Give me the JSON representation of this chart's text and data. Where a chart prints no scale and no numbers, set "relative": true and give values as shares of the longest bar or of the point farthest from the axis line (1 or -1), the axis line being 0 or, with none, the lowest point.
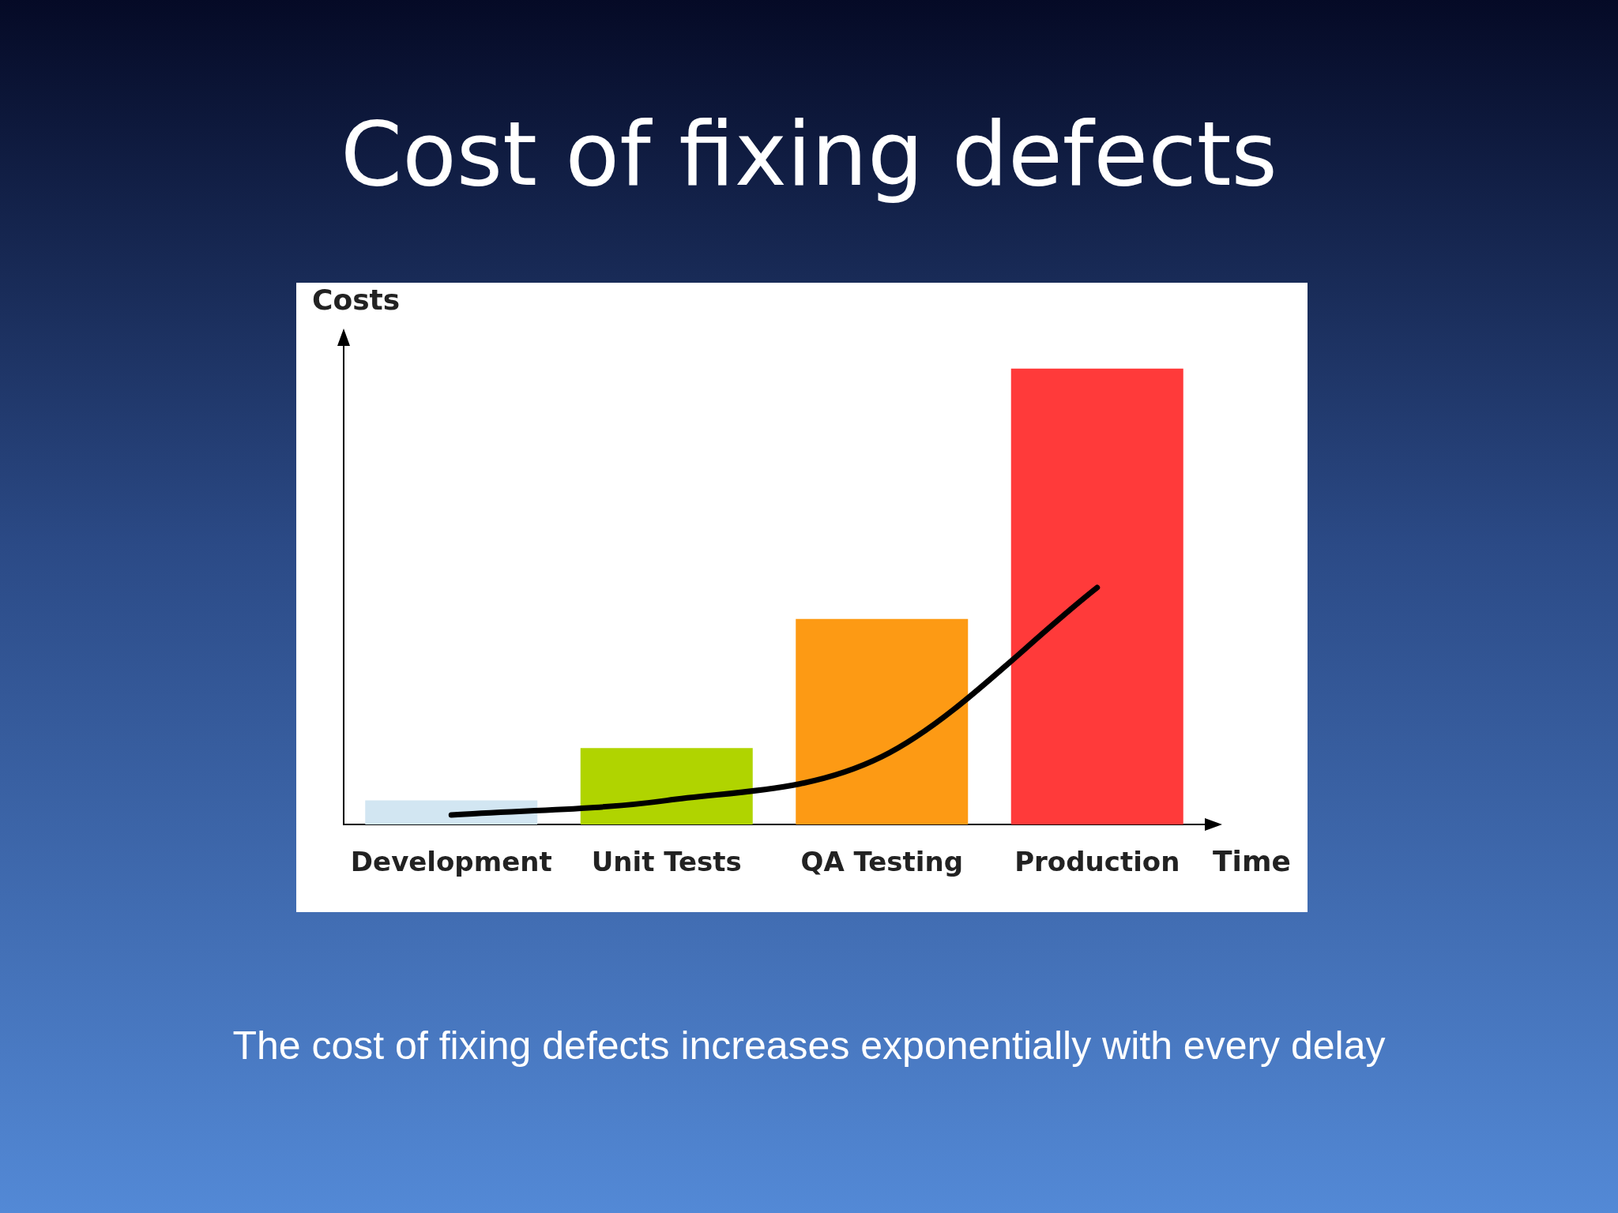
{
  "chart_data": {
    "type": "bar",
    "title": "Cost of fixing defects",
    "xlabel": "Time",
    "ylabel": "Costs",
    "relative": true,
    "categories": [
      "Development",
      "Unit Tests",
      "QA Testing",
      "Production"
    ],
    "series": [
      {
        "colors": [
          "#d2e6f2",
          "#b0d400",
          "#fd9a14",
          "#ff3a3a"
        ],
        "values": [
          0.053,
          0.168,
          0.451,
          1
        ]
      },
      {
        "type": "line",
        "color": "#000000",
        "values": [
          0.021,
          0.053,
          0.149,
          0.52
        ]
      }
    ],
    "annotations": [
      "The cost of fixing defects increases exponentially with every delay"
    ]
  }
}
